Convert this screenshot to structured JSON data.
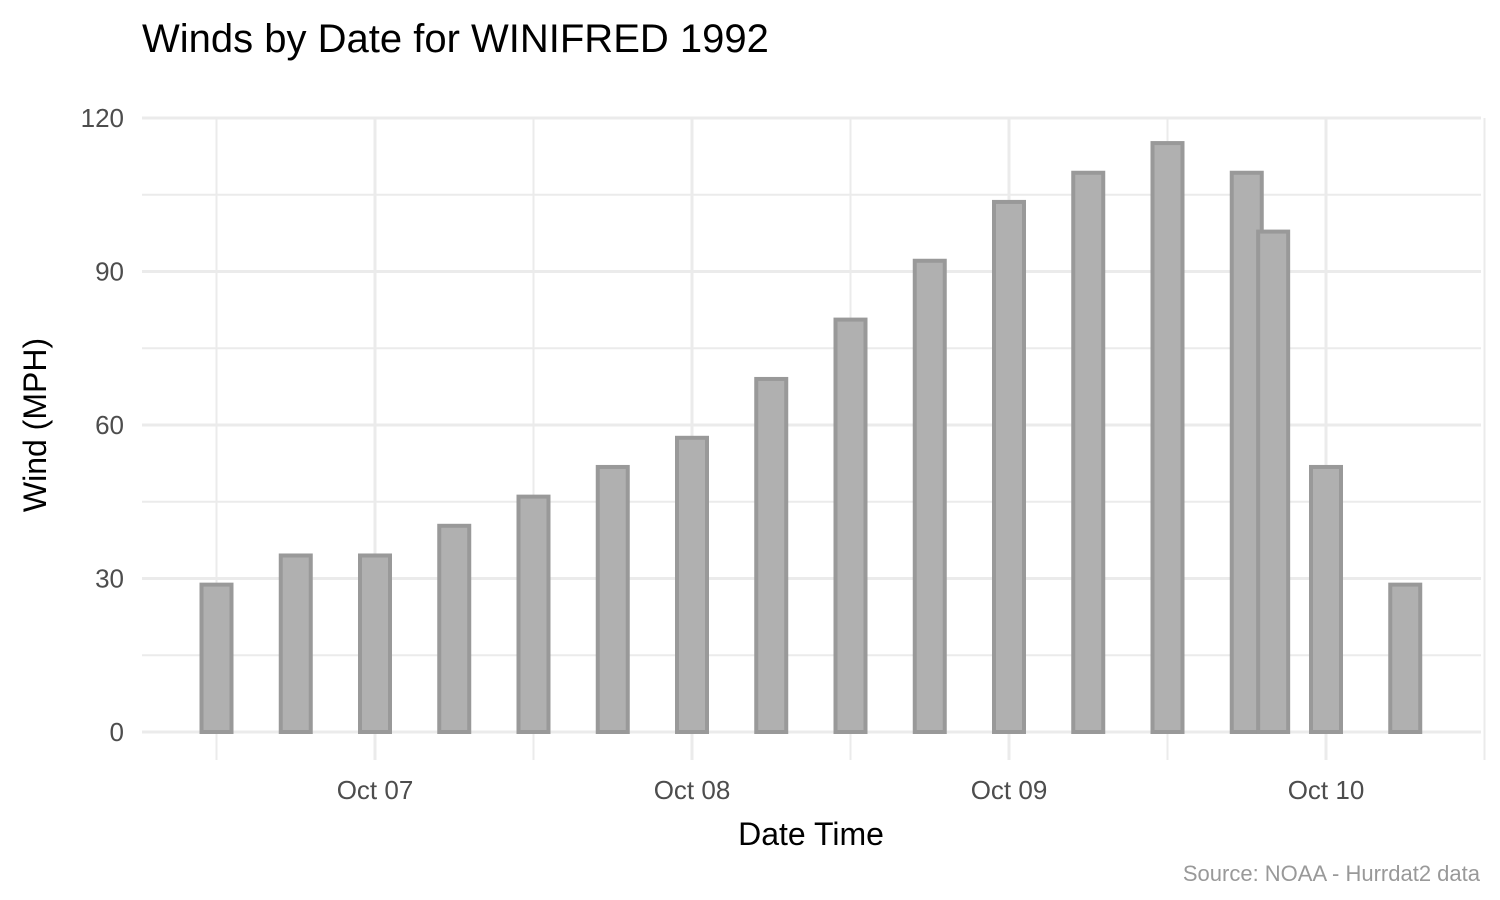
{
  "chart_data": {
    "type": "bar",
    "title": "Winds by Date for WINIFRED 1992",
    "xlabel": "Date Time",
    "ylabel": "Wind (MPH)",
    "caption": "Source: NOAA - Hurrdat2 data",
    "ylim": [
      0,
      120
    ],
    "y_ticks": [
      0,
      30,
      60,
      90,
      120
    ],
    "x_ticks": [
      "Oct 07",
      "Oct 08",
      "Oct 09",
      "Oct 10"
    ],
    "grid": true,
    "legend": "none",
    "bar_fill": "#b0b0b0",
    "bar_outline": "#999999",
    "x": [
      "1992-10-06 12:00",
      "1992-10-06 18:00",
      "1992-10-07 00:00",
      "1992-10-07 06:00",
      "1992-10-07 12:00",
      "1992-10-07 18:00",
      "1992-10-08 00:00",
      "1992-10-08 06:00",
      "1992-10-08 12:00",
      "1992-10-08 18:00",
      "1992-10-09 00:00",
      "1992-10-09 06:00",
      "1992-10-09 12:00",
      "1992-10-09 18:00",
      "1992-10-09 20:00",
      "1992-10-10 00:00",
      "1992-10-10 06:00"
    ],
    "values": [
      28.8,
      34.5,
      34.5,
      40.3,
      46.0,
      51.8,
      57.5,
      69.0,
      80.6,
      92.1,
      103.6,
      109.3,
      115.1,
      109.3,
      97.8,
      51.8,
      28.8
    ]
  }
}
